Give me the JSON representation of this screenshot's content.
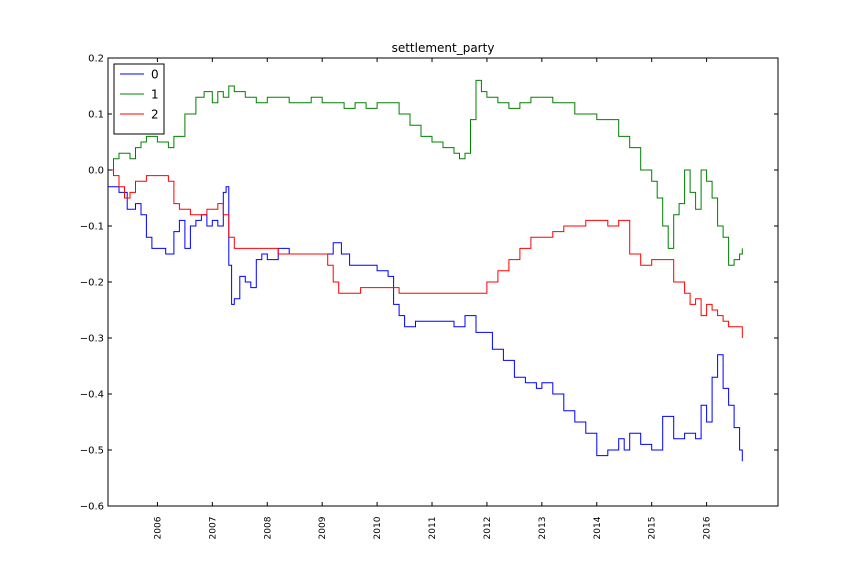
{
  "chart_data": {
    "type": "line",
    "title": "settlement_party",
    "xlabel": "",
    "ylabel": "",
    "xlim": [
      2005.1,
      2017.3
    ],
    "ylim": [
      -0.6,
      0.2
    ],
    "x_ticks": [
      "2006",
      "2007",
      "2008",
      "2009",
      "2010",
      "2011",
      "2012",
      "2013",
      "2014",
      "2015",
      "2016"
    ],
    "x_tick_values": [
      2006,
      2007,
      2008,
      2009,
      2010,
      2011,
      2012,
      2013,
      2014,
      2015,
      2016
    ],
    "y_ticks": [
      "0.2",
      "0.1",
      "0.0",
      "−0.1",
      "−0.2",
      "−0.3",
      "−0.4",
      "−0.5",
      "−0.6"
    ],
    "y_tick_values": [
      0.2,
      0.1,
      0.0,
      -0.1,
      -0.2,
      -0.3,
      -0.4,
      -0.5,
      -0.6
    ],
    "grid": false,
    "legend_position": "top-left",
    "series": [
      {
        "name": "0",
        "color": "#0000ff",
        "x": [
          2005.1,
          2005.3,
          2005.45,
          2005.6,
          2005.7,
          2005.8,
          2005.9,
          2006.0,
          2006.15,
          2006.3,
          2006.4,
          2006.5,
          2006.6,
          2006.7,
          2006.8,
          2006.9,
          2007.0,
          2007.1,
          2007.2,
          2007.25,
          2007.3,
          2007.35,
          2007.4,
          2007.5,
          2007.6,
          2007.7,
          2007.8,
          2007.9,
          2008.0,
          2008.2,
          2008.4,
          2008.6,
          2008.8,
          2009.0,
          2009.2,
          2009.35,
          2009.5,
          2009.7,
          2009.9,
          2010.0,
          2010.2,
          2010.3,
          2010.4,
          2010.5,
          2010.7,
          2010.9,
          2011.0,
          2011.2,
          2011.4,
          2011.6,
          2011.8,
          2011.95,
          2012.1,
          2012.3,
          2012.5,
          2012.7,
          2012.9,
          2013.0,
          2013.2,
          2013.4,
          2013.6,
          2013.8,
          2014.0,
          2014.2,
          2014.4,
          2014.5,
          2014.6,
          2014.8,
          2015.0,
          2015.2,
          2015.4,
          2015.6,
          2015.8,
          2015.9,
          2016.0,
          2016.1,
          2016.2,
          2016.3,
          2016.4,
          2016.5,
          2016.6,
          2016.65
        ],
        "values": [
          -0.03,
          -0.04,
          -0.07,
          -0.06,
          -0.08,
          -0.12,
          -0.14,
          -0.14,
          -0.15,
          -0.11,
          -0.09,
          -0.14,
          -0.1,
          -0.09,
          -0.08,
          -0.1,
          -0.09,
          -0.1,
          -0.04,
          -0.03,
          -0.17,
          -0.24,
          -0.23,
          -0.19,
          -0.2,
          -0.21,
          -0.16,
          -0.15,
          -0.16,
          -0.14,
          -0.15,
          -0.15,
          -0.15,
          -0.15,
          -0.13,
          -0.15,
          -0.17,
          -0.17,
          -0.17,
          -0.18,
          -0.19,
          -0.24,
          -0.26,
          -0.28,
          -0.27,
          -0.27,
          -0.27,
          -0.27,
          -0.28,
          -0.26,
          -0.29,
          -0.29,
          -0.32,
          -0.34,
          -0.37,
          -0.38,
          -0.39,
          -0.38,
          -0.4,
          -0.43,
          -0.45,
          -0.47,
          -0.51,
          -0.5,
          -0.48,
          -0.5,
          -0.47,
          -0.49,
          -0.5,
          -0.44,
          -0.48,
          -0.47,
          -0.48,
          -0.42,
          -0.45,
          -0.37,
          -0.33,
          -0.39,
          -0.42,
          -0.46,
          -0.5,
          -0.52
        ]
      },
      {
        "name": "1",
        "color": "#008000",
        "x": [
          2005.1,
          2005.2,
          2005.3,
          2005.5,
          2005.6,
          2005.7,
          2005.8,
          2005.9,
          2006.0,
          2006.2,
          2006.3,
          2006.5,
          2006.7,
          2006.85,
          2007.0,
          2007.1,
          2007.2,
          2007.3,
          2007.4,
          2007.6,
          2007.8,
          2008.0,
          2008.2,
          2008.4,
          2008.6,
          2008.8,
          2009.0,
          2009.2,
          2009.4,
          2009.6,
          2009.8,
          2010.0,
          2010.2,
          2010.4,
          2010.6,
          2010.8,
          2011.0,
          2011.2,
          2011.4,
          2011.5,
          2011.6,
          2011.7,
          2011.8,
          2011.9,
          2012.0,
          2012.2,
          2012.4,
          2012.6,
          2012.8,
          2013.0,
          2013.2,
          2013.4,
          2013.6,
          2013.8,
          2014.0,
          2014.2,
          2014.4,
          2014.6,
          2014.8,
          2015.0,
          2015.1,
          2015.2,
          2015.3,
          2015.4,
          2015.5,
          2015.6,
          2015.7,
          2015.8,
          2015.9,
          2016.0,
          2016.1,
          2016.2,
          2016.3,
          2016.4,
          2016.5,
          2016.6,
          2016.65
        ],
        "values": [
          0.0,
          0.02,
          0.03,
          0.02,
          0.04,
          0.05,
          0.06,
          0.06,
          0.05,
          0.04,
          0.06,
          0.1,
          0.13,
          0.14,
          0.12,
          0.14,
          0.13,
          0.15,
          0.14,
          0.13,
          0.12,
          0.13,
          0.13,
          0.12,
          0.12,
          0.13,
          0.12,
          0.12,
          0.11,
          0.12,
          0.11,
          0.12,
          0.12,
          0.1,
          0.08,
          0.06,
          0.05,
          0.04,
          0.03,
          0.02,
          0.03,
          0.09,
          0.16,
          0.14,
          0.13,
          0.12,
          0.11,
          0.12,
          0.13,
          0.13,
          0.12,
          0.12,
          0.1,
          0.1,
          0.09,
          0.09,
          0.06,
          0.04,
          0.0,
          -0.02,
          -0.05,
          -0.1,
          -0.14,
          -0.08,
          -0.06,
          0.0,
          -0.04,
          -0.07,
          0.0,
          -0.02,
          -0.05,
          -0.1,
          -0.12,
          -0.17,
          -0.16,
          -0.15,
          -0.14
        ]
      },
      {
        "name": "2",
        "color": "#ff0000",
        "x": [
          2005.1,
          2005.2,
          2005.3,
          2005.4,
          2005.5,
          2005.6,
          2005.7,
          2005.8,
          2005.9,
          2006.0,
          2006.2,
          2006.3,
          2006.4,
          2006.5,
          2006.6,
          2006.7,
          2006.8,
          2006.9,
          2007.0,
          2007.1,
          2007.2,
          2007.3,
          2007.4,
          2007.6,
          2007.8,
          2008.0,
          2008.2,
          2008.4,
          2008.6,
          2008.8,
          2009.0,
          2009.1,
          2009.2,
          2009.3,
          2009.5,
          2009.7,
          2009.9,
          2010.0,
          2010.2,
          2010.4,
          2010.6,
          2010.8,
          2011.0,
          2011.2,
          2011.4,
          2011.6,
          2011.8,
          2012.0,
          2012.2,
          2012.4,
          2012.6,
          2012.8,
          2013.0,
          2013.2,
          2013.4,
          2013.6,
          2013.8,
          2014.0,
          2014.2,
          2014.4,
          2014.5,
          2014.6,
          2014.8,
          2015.0,
          2015.2,
          2015.4,
          2015.6,
          2015.7,
          2015.8,
          2015.9,
          2016.0,
          2016.1,
          2016.2,
          2016.3,
          2016.4,
          2016.5,
          2016.6,
          2016.65
        ],
        "values": [
          0.0,
          -0.01,
          -0.03,
          -0.05,
          -0.04,
          -0.02,
          -0.02,
          -0.01,
          -0.01,
          -0.01,
          -0.02,
          -0.06,
          -0.07,
          -0.07,
          -0.08,
          -0.08,
          -0.08,
          -0.07,
          -0.07,
          -0.06,
          -0.08,
          -0.12,
          -0.14,
          -0.14,
          -0.14,
          -0.14,
          -0.15,
          -0.15,
          -0.15,
          -0.15,
          -0.15,
          -0.17,
          -0.2,
          -0.22,
          -0.22,
          -0.21,
          -0.21,
          -0.21,
          -0.21,
          -0.22,
          -0.22,
          -0.22,
          -0.22,
          -0.22,
          -0.22,
          -0.22,
          -0.22,
          -0.2,
          -0.18,
          -0.16,
          -0.14,
          -0.12,
          -0.12,
          -0.11,
          -0.1,
          -0.1,
          -0.09,
          -0.09,
          -0.1,
          -0.09,
          -0.09,
          -0.15,
          -0.17,
          -0.16,
          -0.16,
          -0.2,
          -0.22,
          -0.24,
          -0.23,
          -0.26,
          -0.24,
          -0.25,
          -0.26,
          -0.27,
          -0.28,
          -0.28,
          -0.28,
          -0.3
        ]
      }
    ]
  }
}
